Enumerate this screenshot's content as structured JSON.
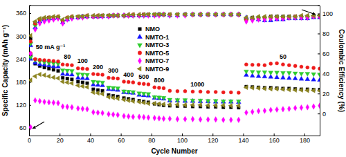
{
  "chart_data": {
    "type": "scatter",
    "x_label": "Cycle Number",
    "y_label": "Specific Capacity (mAh g⁻¹)",
    "y2_label": "Coulombic Efficiency (%)",
    "xlim": [
      0,
      190
    ],
    "xticks": [
      0,
      20,
      40,
      60,
      80,
      100,
      120,
      140,
      160,
      180
    ],
    "ylim": [
      40,
      380
    ],
    "yticks": [
      60,
      120,
      180,
      240,
      300,
      360
    ],
    "y2lim": [
      -22,
      108
    ],
    "y2ticks": [
      0,
      20,
      40,
      60,
      80,
      100
    ],
    "legend": "upper center",
    "x": [
      1,
      4,
      7,
      10,
      13,
      16,
      19,
      22,
      25,
      28,
      32,
      35,
      38,
      42,
      45,
      48,
      52,
      55,
      58,
      62,
      65,
      68,
      72,
      75,
      78,
      82,
      85,
      88,
      92,
      97,
      102,
      107,
      112,
      117,
      122,
      127,
      132,
      137,
      142,
      146,
      150,
      154,
      158,
      162,
      166,
      170,
      174,
      178,
      182,
      186,
      190
    ],
    "series": [
      {
        "name": "NMO",
        "color": "#000000",
        "marker": "square",
        "values": [
          250,
          228,
          222,
          218,
          215,
          212,
          209,
          191,
          189,
          187,
          181,
          179,
          177,
          161,
          159,
          157,
          146,
          144,
          142,
          138,
          136,
          134,
          131,
          129,
          127,
          123,
          121,
          119,
          118,
          117,
          117,
          116,
          116,
          115,
          115,
          114,
          114,
          113,
          168,
          167,
          166,
          165,
          165,
          164,
          163,
          163,
          162,
          161,
          161,
          160,
          160
        ]
      },
      {
        "name": "NMTO-1",
        "color": "#1414ff",
        "marker": "triangle-up",
        "values": [
          240,
          230,
          226,
          225,
          223,
          221,
          220,
          201,
          200,
          199,
          191,
          190,
          189,
          173,
          172,
          171,
          161,
          160,
          159,
          153,
          152,
          151,
          146,
          145,
          144,
          138,
          137,
          136,
          131,
          131,
          130,
          130,
          129,
          129,
          128,
          128,
          128,
          127,
          198,
          196,
          195,
          194,
          193,
          192,
          191,
          190,
          189,
          188,
          187,
          186,
          185
        ]
      },
      {
        "name": "NMTO-3",
        "color": "#2ecc2e",
        "marker": "triangle-down",
        "values": [
          245,
          238,
          234,
          232,
          230,
          229,
          228,
          211,
          210,
          209,
          201,
          200,
          199,
          181,
          180,
          179,
          166,
          165,
          164,
          156,
          155,
          154,
          151,
          150,
          149,
          141,
          140,
          139,
          134,
          133,
          133,
          132,
          132,
          131,
          131,
          130,
          130,
          130,
          208,
          207,
          206,
          206,
          205,
          205,
          204,
          204,
          203,
          202,
          202,
          201,
          200
        ]
      },
      {
        "name": "NMTO-5",
        "color": "#ee1c1c",
        "marker": "circle",
        "values": [
          255,
          240,
          238,
          237,
          236,
          235,
          234,
          226,
          225,
          224,
          216,
          215,
          214,
          201,
          200,
          199,
          191,
          190,
          189,
          181,
          180,
          179,
          176,
          175,
          174,
          166,
          165,
          164,
          157,
          156,
          156,
          155,
          155,
          154,
          154,
          153,
          153,
          152,
          226,
          225,
          225,
          224,
          228,
          229,
          226,
          224,
          222,
          220,
          218,
          217,
          215
        ]
      },
      {
        "name": "NMTO-7",
        "color": "#ff00ff",
        "marker": "diamond",
        "values": [
          62,
          132,
          130,
          128,
          127,
          126,
          125,
          116,
          115,
          114,
          111,
          110,
          109,
          101,
          100,
          99,
          96,
          95,
          94,
          91,
          90,
          89,
          89,
          88,
          87,
          86,
          85,
          84,
          84,
          83,
          83,
          83,
          82,
          82,
          82,
          81,
          81,
          81,
          100,
          102,
          104,
          105,
          107,
          108,
          109,
          110,
          112,
          113,
          114,
          116,
          118
        ]
      },
      {
        "name": "NMTO-9",
        "color": "#8c8420",
        "marker": "triangle-left",
        "values": [
          185,
          195,
          200,
          198,
          195,
          192,
          190,
          181,
          179,
          177,
          171,
          169,
          167,
          153,
          151,
          149,
          141,
          139,
          137,
          134,
          132,
          130,
          128,
          126,
          124,
          124,
          123,
          122,
          121,
          121,
          120,
          120,
          120,
          119,
          119,
          119,
          118,
          118,
          166,
          165,
          164,
          163,
          162,
          162,
          161,
          160,
          159,
          159,
          158,
          158,
          157
        ]
      },
      {
        "name": "NMO",
        "color": "#000000",
        "marker": "square",
        "axis": "y2",
        "values": [
          75,
          91,
          94,
          95,
          96,
          96,
          96,
          92,
          95,
          96,
          96,
          97,
          97,
          97,
          97,
          98,
          98,
          98,
          98,
          98,
          98,
          98,
          98,
          99,
          99,
          99,
          99,
          99,
          99,
          99,
          99,
          99,
          99,
          99,
          99,
          99,
          99,
          99,
          95,
          96,
          96,
          96,
          97,
          97,
          97,
          97,
          97,
          97,
          97,
          97,
          98
        ]
      },
      {
        "name": "NMTO-1",
        "color": "#1414ff",
        "marker": "triangle-up",
        "axis": "y2",
        "values": [
          68,
          86,
          92,
          94,
          95,
          95,
          96,
          91,
          94,
          96,
          96,
          97,
          97,
          97,
          97,
          97,
          97,
          98,
          98,
          98,
          98,
          98,
          98,
          98,
          98,
          98,
          99,
          99,
          98,
          98,
          99,
          99,
          99,
          99,
          99,
          99,
          99,
          99,
          96,
          95,
          94,
          93,
          93,
          94,
          94,
          95,
          95,
          95,
          95,
          96,
          96
        ]
      },
      {
        "name": "NMTO-3",
        "color": "#2ecc2e",
        "marker": "triangle-down",
        "axis": "y2",
        "values": [
          70,
          88,
          93,
          94,
          95,
          96,
          96,
          92,
          95,
          96,
          97,
          97,
          97,
          97,
          97,
          98,
          98,
          98,
          98,
          98,
          98,
          98,
          98,
          98,
          99,
          99,
          99,
          99,
          98,
          99,
          99,
          99,
          99,
          99,
          99,
          99,
          99,
          99,
          93,
          94,
          95,
          95,
          95,
          96,
          96,
          96,
          96,
          96,
          96,
          97,
          97
        ]
      },
      {
        "name": "NMTO-5",
        "color": "#ee1c1c",
        "marker": "circle",
        "axis": "y2",
        "values": [
          72,
          90,
          94,
          95,
          96,
          96,
          97,
          93,
          96,
          97,
          97,
          97,
          98,
          97,
          98,
          98,
          98,
          98,
          98,
          98,
          98,
          99,
          98,
          99,
          99,
          99,
          99,
          99,
          99,
          99,
          99,
          99,
          99,
          99,
          99,
          99,
          99,
          99,
          94,
          95,
          95,
          96,
          96,
          96,
          96,
          96,
          97,
          97,
          97,
          97,
          97
        ]
      },
      {
        "name": "NMTO-7",
        "color": "#ff00ff",
        "marker": "diamond",
        "axis": "y2",
        "values": [
          60,
          84,
          90,
          92,
          93,
          94,
          95,
          90,
          94,
          95,
          96,
          96,
          97,
          97,
          97,
          97,
          97,
          98,
          98,
          98,
          98,
          98,
          98,
          98,
          98,
          98,
          98,
          99,
          98,
          98,
          98,
          99,
          99,
          99,
          99,
          99,
          99,
          99,
          92,
          93,
          94,
          94,
          95,
          95,
          95,
          96,
          96,
          96,
          96,
          97,
          97
        ]
      },
      {
        "name": "NMTO-9",
        "color": "#8c8420",
        "marker": "triangle-left",
        "axis": "y2",
        "values": [
          78,
          92,
          95,
          96,
          96,
          97,
          97,
          94,
          96,
          97,
          97,
          97,
          98,
          98,
          98,
          98,
          98,
          98,
          98,
          98,
          99,
          99,
          99,
          99,
          99,
          99,
          99,
          99,
          99,
          99,
          99,
          99,
          99,
          99,
          99,
          99,
          99,
          99,
          96,
          96,
          97,
          97,
          97,
          97,
          97,
          97,
          97,
          98,
          98,
          98,
          98
        ]
      }
    ],
    "annotations": [
      {
        "text": "50 mA g⁻¹",
        "x": 14,
        "y": 266
      },
      {
        "text": "80",
        "x": 25,
        "y": 240
      },
      {
        "text": "100",
        "x": 35,
        "y": 229
      },
      {
        "text": "200",
        "x": 45,
        "y": 214
      },
      {
        "text": "300",
        "x": 55,
        "y": 204
      },
      {
        "text": "400",
        "x": 65,
        "y": 194
      },
      {
        "text": "500",
        "x": 75,
        "y": 189
      },
      {
        "text": "800",
        "x": 85,
        "y": 179
      },
      {
        "text": "1000",
        "x": 110,
        "y": 168
      },
      {
        "text": "50",
        "x": 166,
        "y": 241
      }
    ]
  }
}
